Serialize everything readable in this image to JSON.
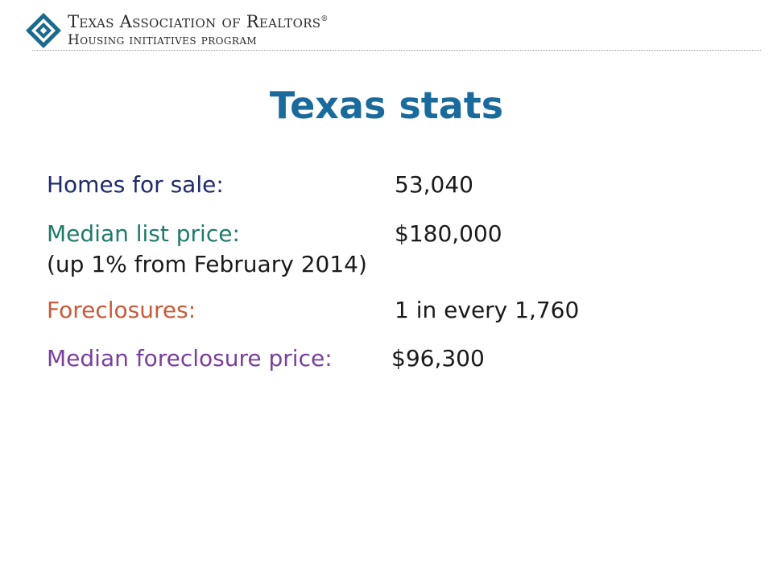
{
  "header": {
    "org_line1": "Texas Association of Realtors",
    "registered_mark": "®",
    "org_line2": "Housing initiatives program",
    "logo_icon": "diamond-house-icon",
    "logo_color": "#1a6a8c"
  },
  "title": "Texas stats",
  "stats": [
    {
      "label": "Homes for sale:",
      "value": "53,040",
      "label_color": "#1f2a6b"
    },
    {
      "label": "Median list price:",
      "value": "$180,000",
      "note": "(up 1% from February 2014)",
      "label_color": "#1f7a6a"
    },
    {
      "label": "Foreclosures:",
      "value": "1 in every 1,760",
      "label_color": "#c85a3a"
    },
    {
      "label": "Median foreclosure price:",
      "value": "$96,300",
      "label_color": "#7a3f9c"
    }
  ],
  "colors": {
    "title": "#1a6a9c",
    "value_text": "#1a1a1a"
  }
}
